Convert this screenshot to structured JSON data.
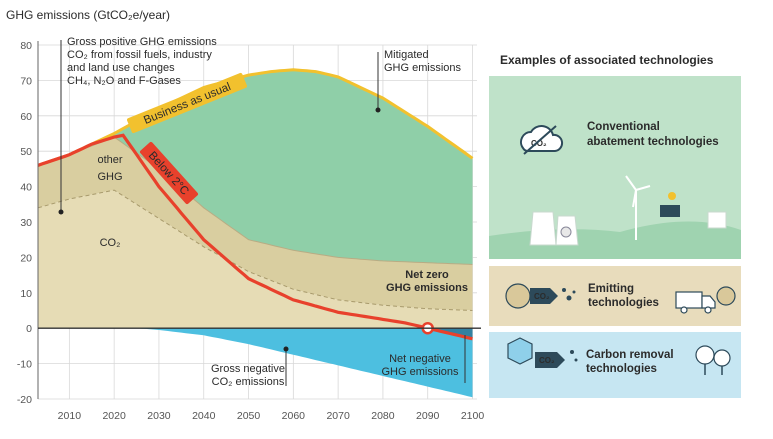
{
  "chart_data": {
    "type": "area",
    "ylabel": "GHG emissions (GtCO₂e/year)",
    "x_ticks": [
      2010,
      2020,
      2030,
      2040,
      2050,
      2060,
      2070,
      2080,
      2090,
      2100
    ],
    "y_ticks": [
      80,
      70,
      60,
      50,
      40,
      30,
      20,
      10,
      0,
      -10,
      -20
    ],
    "xlim": [
      2003,
      2101
    ],
    "ylim": [
      -20,
      80
    ],
    "grid": true,
    "series": [
      {
        "name": "Business as usual",
        "x": [
          2003,
          2010,
          2020,
          2030,
          2040,
          2050,
          2055,
          2060,
          2065,
          2070,
          2080,
          2090,
          2100
        ],
        "y": [
          46,
          49,
          55,
          62,
          68,
          71.5,
          72.5,
          73,
          72.5,
          71,
          65,
          57,
          48
        ]
      },
      {
        "name": "Below 2°C",
        "x": [
          2003,
          2010,
          2015,
          2020,
          2022,
          2030,
          2040,
          2050,
          2060,
          2070,
          2080,
          2085,
          2090,
          2095,
          2100
        ],
        "y": [
          46,
          49,
          52,
          54,
          54.5,
          40,
          25,
          14,
          8,
          4.5,
          2.5,
          1.5,
          0,
          -1.5,
          -3
        ]
      },
      {
        "name": "other GHG",
        "x": [
          2003,
          2010,
          2020,
          2030,
          2040,
          2050,
          2060,
          2070,
          2080,
          2090,
          2100
        ],
        "y": [
          46,
          49,
          54,
          45,
          34,
          25,
          22,
          20,
          19,
          18.5,
          18
        ]
      },
      {
        "name": "CO₂",
        "x": [
          2003,
          2010,
          2020,
          2030,
          2040,
          2050,
          2060,
          2070,
          2080,
          2090,
          2100
        ],
        "y": [
          34,
          36.5,
          39,
          31,
          23,
          16,
          11,
          8,
          6.5,
          5.5,
          5
        ]
      },
      {
        "name": "Gross negative CO₂ emissions",
        "x": [
          2003,
          2025,
          2030,
          2040,
          2050,
          2060,
          2070,
          2080,
          2090,
          2100
        ],
        "y": [
          0,
          0,
          -0.5,
          -2,
          -4.5,
          -7.5,
          -10.5,
          -13.5,
          -16.5,
          -19.5
        ]
      }
    ],
    "annotations": {
      "gross_positive": [
        "Gross positive GHG emissions",
        "CO₂ from fossil fuels, industry",
        "and land use changes",
        "CH₄, N₂O and F-Gases"
      ],
      "mitigated": [
        "Mitigated",
        "GHG emissions"
      ],
      "bau_label": "Business as usual",
      "below2_label": "Below 2°C",
      "other_ghg": [
        "other",
        "GHG"
      ],
      "co2": "CO₂",
      "net_zero": [
        "Net zero",
        "GHG emissions"
      ],
      "gross_negative": [
        "Gross negative",
        "CO₂ emissions"
      ],
      "net_negative": [
        "Net negative",
        "GHG emissions"
      ]
    },
    "colors": {
      "bau": "#f2c12e",
      "below2": "#e8412c",
      "mitigated": "#8fcfa8",
      "other_ghg": "#d9ceA0",
      "co2": "#e6dcb5",
      "negative": "#4dbfe0",
      "grid": "#d8d8d8"
    }
  },
  "technologies": {
    "title": "Examples of associated technologies",
    "items": [
      {
        "label": [
          "Conventional",
          "abatement technologies"
        ],
        "icon_text": "CO₂",
        "bg": "#bfe2c9"
      },
      {
        "label": [
          "Emitting",
          "technologies"
        ],
        "icon_text": "CO₂",
        "bg": "#e8dcbc"
      },
      {
        "label": [
          "Carbon removal",
          "technologies"
        ],
        "icon_text": "CO₂",
        "bg": "#c6e6f2"
      }
    ]
  }
}
